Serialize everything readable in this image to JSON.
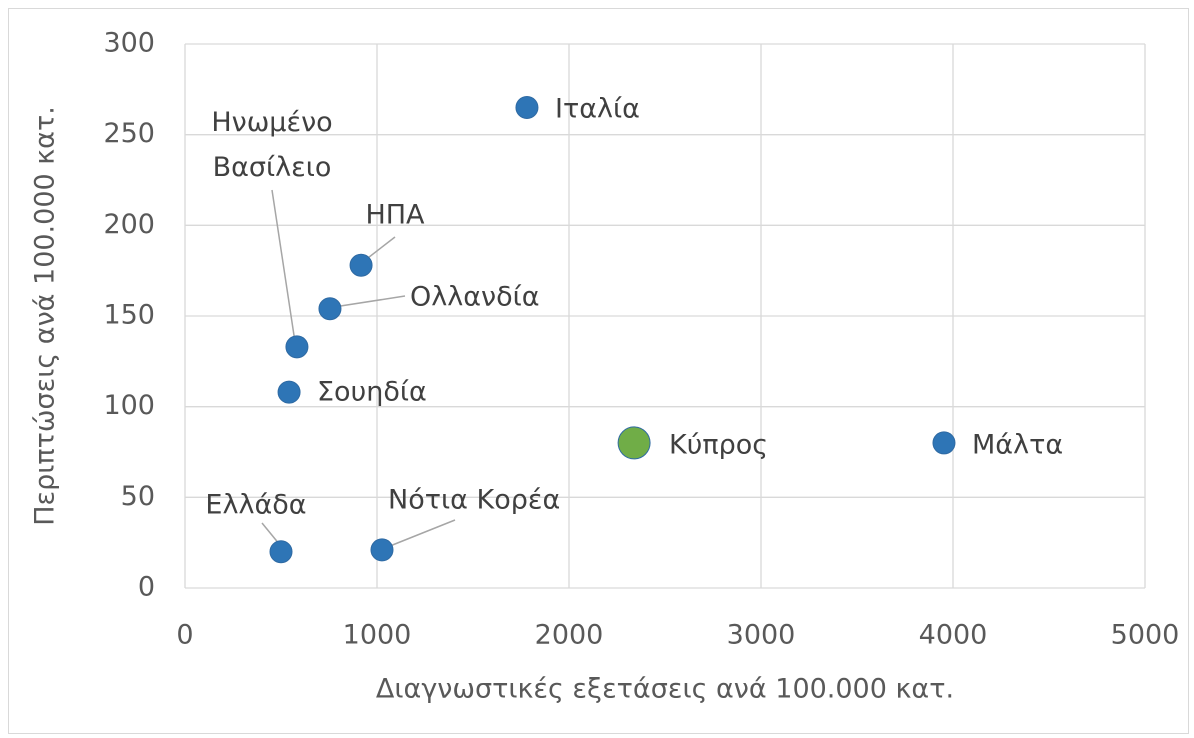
{
  "chart_data": {
    "type": "scatter",
    "xlabel": "Διαγνωστικές εξετάσεις ανά 100.000 κατ.",
    "ylabel": "Περιπτώσεις ανά 100.000 κατ.",
    "xlim": [
      0,
      5000
    ],
    "xticks": [
      0,
      1000,
      2000,
      3000,
      4000,
      5000
    ],
    "ylim": [
      0,
      300
    ],
    "yticks": [
      0,
      50,
      100,
      150,
      200,
      250,
      300
    ],
    "grid": true,
    "series": [
      {
        "color": "#2e75b6",
        "marker_size": 11,
        "x": [
          1781,
          500,
          1026,
          542,
          583,
          755,
          917,
          3953
        ],
        "values": [
          265,
          20,
          21,
          108,
          133,
          154,
          178,
          80
        ],
        "labels": [
          "Ιταλία",
          "Ελλάδα",
          "Νότια Κορέα",
          "Σουηδία",
          "Ηνωμένο Βασίλειο",
          "Ολλανδία",
          "ΗΠΑ",
          "Μάλτα"
        ]
      },
      {
        "color": "#70ad47",
        "marker_size": 16,
        "x": [
          2339
        ],
        "values": [
          80
        ],
        "labels": [
          "Κύπρος"
        ]
      }
    ]
  }
}
